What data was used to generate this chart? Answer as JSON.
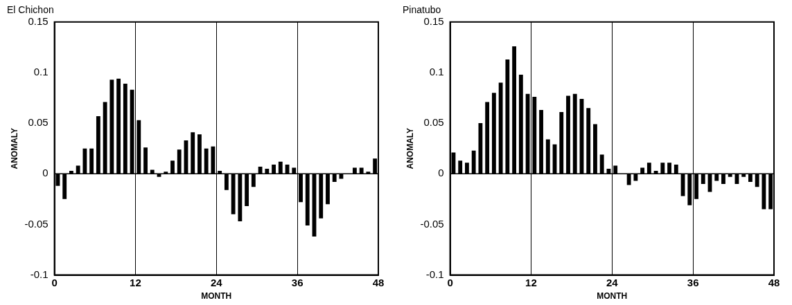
{
  "chart_data": [
    {
      "type": "bar",
      "title": "El Chichon",
      "xlabel": "MONTH",
      "ylabel": "ANOMALY",
      "x": [
        0.5,
        1.5,
        2.5,
        3.5,
        4.5,
        5.5,
        6.5,
        7.5,
        8.5,
        9.5,
        10.5,
        11.5,
        12.5,
        13.5,
        14.5,
        15.5,
        16.5,
        17.5,
        18.5,
        19.5,
        20.5,
        21.5,
        22.5,
        23.5,
        24.5,
        25.5,
        26.5,
        27.5,
        28.5,
        29.5,
        30.5,
        31.5,
        32.5,
        33.5,
        34.5,
        35.5,
        36.5,
        37.5,
        38.5,
        39.5,
        40.5,
        41.5,
        42.5,
        43.5,
        44.5,
        45.5,
        46.5,
        47.5
      ],
      "values": [
        -0.012,
        -0.025,
        0.003,
        0.008,
        0.025,
        0.025,
        0.057,
        0.071,
        0.093,
        0.094,
        0.089,
        0.083,
        0.053,
        0.026,
        0.004,
        -0.003,
        0.002,
        0.013,
        0.024,
        0.033,
        0.041,
        0.039,
        0.025,
        0.027,
        0.003,
        -0.016,
        -0.04,
        -0.047,
        -0.032,
        -0.013,
        0.007,
        0.005,
        0.009,
        0.012,
        0.009,
        0.006,
        -0.028,
        -0.051,
        -0.062,
        -0.044,
        -0.03,
        -0.008,
        -0.005,
        0,
        0.006,
        0.006,
        0.002,
        0.015
      ],
      "color": "#000000",
      "xlim": [
        0,
        48
      ],
      "xticks": [
        0,
        12,
        24,
        36,
        48
      ],
      "ylim": [
        -0.1,
        0.15
      ],
      "yticks": [
        -0.1,
        -0.05,
        0,
        0.05,
        0.1,
        0.15
      ],
      "grid": "x",
      "legend": false,
      "ref_lines": [
        {
          "axis": "y",
          "value": 0,
          "color": "#000000"
        }
      ]
    },
    {
      "type": "bar",
      "title": "Pinatubo",
      "xlabel": "MONTH",
      "ylabel": "ANOMALY",
      "x": [
        0.5,
        1.5,
        2.5,
        3.5,
        4.5,
        5.5,
        6.5,
        7.5,
        8.5,
        9.5,
        10.5,
        11.5,
        12.5,
        13.5,
        14.5,
        15.5,
        16.5,
        17.5,
        18.5,
        19.5,
        20.5,
        21.5,
        22.5,
        23.5,
        24.5,
        25.5,
        26.5,
        27.5,
        28.5,
        29.5,
        30.5,
        31.5,
        32.5,
        33.5,
        34.5,
        35.5,
        36.5,
        37.5,
        38.5,
        39.5,
        40.5,
        41.5,
        42.5,
        43.5,
        44.5,
        45.5,
        46.5,
        47.5
      ],
      "values": [
        0.021,
        0.013,
        0.011,
        0.023,
        0.05,
        0.071,
        0.08,
        0.09,
        0.113,
        0.126,
        0.098,
        0.079,
        0.076,
        0.063,
        0.034,
        0.029,
        0.061,
        0.077,
        0.079,
        0.074,
        0.065,
        0.049,
        0.019,
        0.005,
        0.008,
        0,
        -0.011,
        -0.007,
        0.006,
        0.011,
        0.003,
        0.011,
        0.011,
        0.009,
        -0.022,
        -0.031,
        -0.025,
        -0.01,
        -0.018,
        -0.007,
        -0.01,
        -0.003,
        -0.01,
        -0.003,
        -0.008,
        -0.013,
        -0.035,
        -0.035
      ],
      "color": "#000000",
      "xlim": [
        0,
        48
      ],
      "xticks": [
        0,
        12,
        24,
        36,
        48
      ],
      "ylim": [
        -0.1,
        0.15
      ],
      "yticks": [
        -0.1,
        -0.05,
        0,
        0.05,
        0.1,
        0.15
      ],
      "grid": "x",
      "legend": false,
      "ref_lines": [
        {
          "axis": "y",
          "value": 0,
          "color": "#000000"
        }
      ]
    }
  ]
}
